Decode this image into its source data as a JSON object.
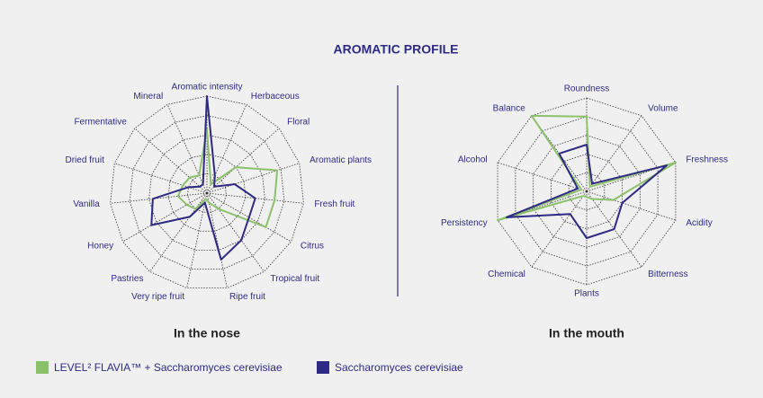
{
  "title": "AROMATIC PROFILE",
  "chart_data": [
    {
      "type": "radar",
      "subtitle": "In the nose",
      "categories": [
        "Aromatic intensity",
        "Herbaceous",
        "Floral",
        "Aromatic plants",
        "Fresh fruit",
        "Citrus",
        "Tropical fruit",
        "Ripe fruit",
        "Very ripe fruit",
        "Pastries",
        "Honey",
        "Vanilla",
        "Dried fruit",
        "Fermentative",
        "Mineral"
      ],
      "rlim": [
        0,
        5
      ],
      "rticks": [
        1,
        2,
        3,
        4,
        5
      ],
      "series": [
        {
          "name": "LEVEL² FLAVIA™ + Saccharomyces cerevisiae",
          "color": "#8cc16b",
          "values": [
            3.3,
            0.5,
            2,
            3.8,
            3.5,
            3.5,
            1,
            0.5,
            0.3,
            1,
            1.2,
            1.5,
            1.3,
            1.2,
            1
          ]
        },
        {
          "name": "Saccharomyces cerevisiae",
          "color": "#2e2a84",
          "values": [
            5,
            1,
            0.5,
            1.5,
            2.5,
            2.5,
            3,
            3.5,
            0.5,
            1.5,
            3.3,
            2.8,
            1,
            0.5,
            0.5
          ]
        }
      ]
    },
    {
      "type": "radar",
      "subtitle": "In the mouth",
      "categories": [
        "Roundness",
        "Volume",
        "Freshness",
        "Acidity",
        "Bitterness",
        "Plants",
        "Chemical",
        "Persistency",
        "Alcohol",
        "Balance"
      ],
      "rlim": [
        0,
        5
      ],
      "rticks": [
        1,
        2,
        3,
        4,
        5
      ],
      "series": [
        {
          "name": "LEVEL² FLAVIA™ + Saccharomyces cerevisiae",
          "color": "#8cc16b",
          "values": [
            4,
            0.3,
            5,
            1.5,
            0.5,
            0.3,
            0.3,
            5,
            0.3,
            5
          ]
        },
        {
          "name": "Saccharomyces cerevisiae",
          "color": "#2e2a84",
          "values": [
            2.5,
            0.5,
            4.5,
            2,
            2.5,
            2.5,
            1.5,
            4.5,
            0.5,
            2.5
          ]
        }
      ]
    }
  ]
}
